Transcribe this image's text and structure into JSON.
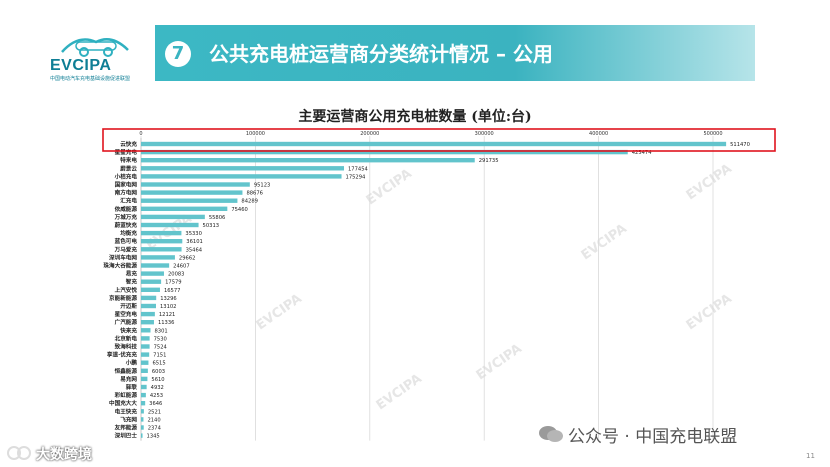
{
  "header": {
    "logo_text": "EVCIPA",
    "logo_subtitle": "中国电动汽车充电基础设施促进联盟",
    "section_number": "7",
    "section_title": "公共充电桩运营商分类统计情况 – 公用"
  },
  "watermark_text": "EVCIPA",
  "footer": {
    "page_number": "11",
    "wechat_account": "公众号 · 中国充电联盟",
    "source_mark": "大数跨境"
  },
  "colors": {
    "bar": "#62c4cc",
    "banner": "#3cb8c4",
    "highlight_box": "#e0141e",
    "grid": "#d9d9d9"
  },
  "chart_data": {
    "type": "bar",
    "orientation": "horizontal",
    "title": "主要运营商公用充电桩数量 (单位:台)",
    "xlim": [
      0,
      500000
    ],
    "x_ticks": [
      0,
      100000,
      200000,
      300000,
      400000,
      500000
    ],
    "grid": true,
    "categories": [
      "云快充",
      "星星充电",
      "特来电",
      "蔚景云",
      "小桔充电",
      "国家电网",
      "南方电网",
      "汇充电",
      "依威能源",
      "万城万充",
      "蔚蓝快充",
      "均衡充",
      "蓝色可电",
      "万马爱充",
      "深圳车电网",
      "珠海大谷能源",
      "易充",
      "智充",
      "上汽安悦",
      "京能新能源",
      "开迈斯",
      "星空充电",
      "广汽能源",
      "快来充",
      "北京新电",
      "致海科技",
      "享道·优充充",
      "小鹏",
      "恒鑫能源",
      "易充网",
      "驿联",
      "彩虹能源",
      "中国充大大",
      "电王快充",
      "飞充网",
      "友邦能源",
      "深圳巴士"
    ],
    "values": [
      511470,
      425474,
      291735,
      177454,
      175294,
      95123,
      88676,
      84289,
      75460,
      55806,
      50313,
      35330,
      36101,
      35464,
      29662,
      24607,
      20083,
      17579,
      16577,
      13296,
      13102,
      12121,
      11336,
      8301,
      7530,
      7524,
      7151,
      6515,
      6003,
      5610,
      4932,
      4253,
      3646,
      2521,
      2140,
      2374,
      1345
    ],
    "value_labels": [
      "511470",
      "425474",
      "291735",
      "177454",
      "175294",
      "95123",
      "88676",
      "84289",
      "75460",
      "55806",
      "50313",
      "35330",
      "36101",
      "35464",
      "29662",
      "24607",
      "20083",
      "17579",
      "16577",
      "13296",
      "13102",
      "12121",
      "11336",
      "8301",
      "7530",
      "7524",
      "7151",
      "6515",
      "6003",
      "5610",
      "4932",
      "4253",
      "3646",
      "2521",
      "2140",
      "2374",
      "1345"
    ],
    "highlighted_category": "云快充"
  }
}
